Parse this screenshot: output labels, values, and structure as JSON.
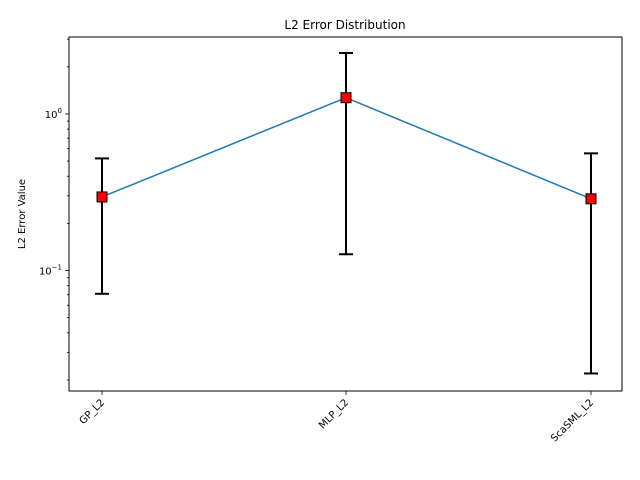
{
  "chart_data": {
    "type": "line",
    "title": "L2 Error Distribution",
    "xlabel": "",
    "ylabel": "L2 Error Value",
    "yscale": "log",
    "ylim": [
      0.017,
      3.1
    ],
    "grid": false,
    "categories": [
      "GP_L2",
      "MLP_L2",
      "ScaSML_L2"
    ],
    "x_tick_rotation": 45,
    "y_ticks": [
      {
        "value": 0.1,
        "label": "10",
        "exp": "−1"
      },
      {
        "value": 1,
        "label": "10",
        "exp": "0"
      }
    ],
    "series": [
      {
        "values": [
          0.295,
          1.27,
          0.287
        ],
        "error_low": [
          0.071,
          0.127,
          0.022
        ],
        "error_high": [
          0.52,
          2.45,
          0.56
        ],
        "line_color": "#1f77b4",
        "marker": "square",
        "marker_color": "#ff0000",
        "errorbar_color": "#000000"
      }
    ]
  }
}
